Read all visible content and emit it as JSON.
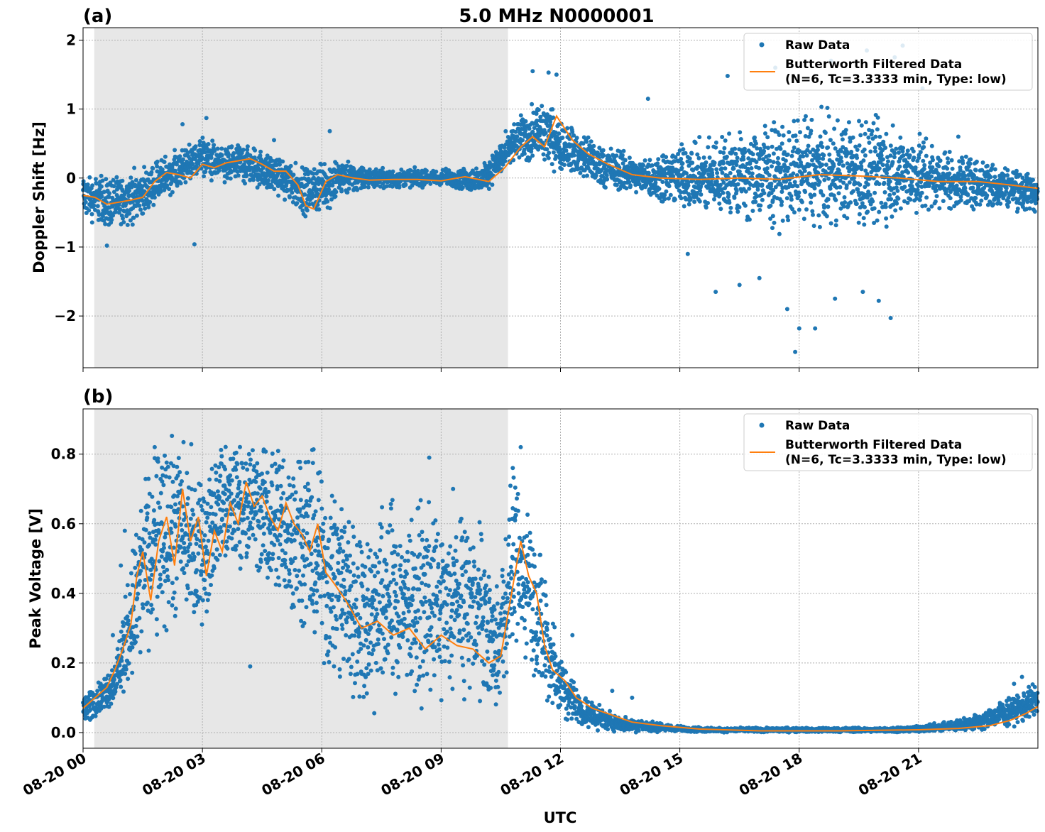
{
  "figure": {
    "title": "5.0 MHz N0000001",
    "xlabel": "UTC",
    "x_tick_labels": [
      "08-20 00",
      "08-20 03",
      "08-20 06",
      "08-20 09",
      "08-20 12",
      "08-20 15",
      "08-20 18",
      "08-20 21"
    ]
  },
  "colors": {
    "raw": "#1f77b4",
    "filtered": "#ff7f0e",
    "night_shade": "#e7e7e7",
    "grid": "#b0b0b0"
  },
  "chart_data": [
    {
      "type": "scatter",
      "panel_label": "(a)",
      "ylabel": "Doppler Shift [Hz]",
      "x_unit": "hours UTC on 08-20",
      "xlim": [
        0,
        24
      ],
      "ylim": [
        -2.75,
        2.18
      ],
      "y_ticks": [
        2,
        1,
        0,
        -1,
        -2
      ],
      "y_tick_labels": [
        "2",
        "1",
        "0",
        "−1",
        "−2"
      ],
      "grid": true,
      "legend_placement": "top-right",
      "shaded_region": {
        "x_start": 0.28,
        "x_end": 10.68
      },
      "series": [
        {
          "name": "Raw Data",
          "style": "markers",
          "band": {
            "x": [
              0,
              0.5,
              1,
              1.5,
              2,
              2.5,
              3,
              3.5,
              4,
              4.5,
              5,
              5.5,
              6,
              6.5,
              7,
              8,
              9,
              10,
              10.5,
              11,
              11.5,
              12,
              12.5,
              13,
              14,
              15,
              16,
              17,
              18,
              19,
              20,
              21,
              22,
              23,
              24
            ],
            "lo": [
              -0.6,
              -0.8,
              -0.75,
              -0.65,
              -0.35,
              -0.2,
              0,
              -0.15,
              -0.1,
              -0.2,
              -0.35,
              -0.55,
              -0.6,
              -0.3,
              -0.2,
              -0.15,
              -0.15,
              -0.25,
              -0.05,
              0.2,
              0.1,
              0.05,
              -0.05,
              -0.2,
              -0.3,
              -0.5,
              -0.7,
              -0.8,
              -0.8,
              -0.8,
              -0.8,
              -0.6,
              -0.5,
              -0.5,
              -0.55
            ],
            "hi": [
              0.15,
              0.1,
              0.1,
              0.2,
              0.35,
              0.5,
              0.65,
              0.5,
              0.55,
              0.45,
              0.35,
              0.25,
              0.3,
              0.35,
              0.2,
              0.15,
              0.15,
              0.2,
              0.6,
              0.95,
              1.25,
              0.9,
              0.75,
              0.55,
              0.35,
              0.55,
              0.75,
              0.9,
              1.0,
              1.0,
              0.95,
              0.7,
              0.4,
              0.3,
              0.1
            ]
          },
          "outliers": [
            [
              2.5,
              0.78
            ],
            [
              3.1,
              0.87
            ],
            [
              4.8,
              0.55
            ],
            [
              6.2,
              0.68
            ],
            [
              2.8,
              -0.96
            ],
            [
              0.6,
              -0.98
            ],
            [
              11.3,
              1.55
            ],
            [
              11.7,
              1.53
            ],
            [
              11.9,
              1.5
            ],
            [
              14.2,
              1.15
            ],
            [
              15.2,
              -1.1
            ],
            [
              15.9,
              -1.65
            ],
            [
              16.5,
              -1.55
            ],
            [
              17.0,
              -1.45
            ],
            [
              17.7,
              -1.9
            ],
            [
              17.9,
              -2.52
            ],
            [
              18.0,
              -2.18
            ],
            [
              18.4,
              -2.18
            ],
            [
              18.9,
              -1.75
            ],
            [
              19.6,
              -1.65
            ],
            [
              20.3,
              -2.03
            ],
            [
              20.0,
              -1.78
            ],
            [
              16.2,
              1.48
            ],
            [
              17.4,
              1.6
            ],
            [
              18.8,
              1.7
            ],
            [
              19.7,
              1.85
            ],
            [
              20.4,
              1.75
            ],
            [
              20.6,
              1.92
            ],
            [
              21.1,
              1.3
            ],
            [
              22.0,
              0.6
            ]
          ]
        },
        {
          "name": "Butterworth Filtered Data\n(N=6, Tc=3.3333 min, Type: low)",
          "style": "line",
          "x": [
            0,
            0.3,
            0.6,
            0.9,
            1.2,
            1.5,
            1.8,
            2.1,
            2.4,
            2.7,
            3.0,
            3.3,
            3.6,
            3.9,
            4.2,
            4.5,
            4.8,
            5.1,
            5.4,
            5.6,
            5.8,
            6.1,
            6.4,
            6.8,
            7.2,
            7.8,
            8.4,
            9.0,
            9.6,
            10.2,
            10.6,
            11.0,
            11.3,
            11.6,
            11.9,
            12.3,
            12.7,
            13.2,
            13.8,
            14.5,
            15.5,
            16.5,
            17.5,
            18.5,
            19.5,
            20.5,
            21.5,
            22.5,
            23.3,
            24.0
          ],
          "y": [
            -0.25,
            -0.28,
            -0.38,
            -0.35,
            -0.32,
            -0.28,
            -0.05,
            0.08,
            0.05,
            0.0,
            0.2,
            0.15,
            0.22,
            0.25,
            0.28,
            0.2,
            0.1,
            0.1,
            -0.1,
            -0.4,
            -0.45,
            -0.05,
            0.05,
            0.0,
            -0.03,
            -0.02,
            -0.02,
            -0.04,
            0.02,
            -0.05,
            0.15,
            0.45,
            0.6,
            0.45,
            0.9,
            0.55,
            0.35,
            0.2,
            0.05,
            0.0,
            -0.02,
            0.0,
            -0.02,
            0.05,
            0.03,
            0.0,
            -0.05,
            -0.05,
            -0.1,
            -0.15
          ]
        }
      ]
    },
    {
      "type": "scatter",
      "panel_label": "(b)",
      "ylabel": "Peak Voltage [V]",
      "x_unit": "hours UTC on 08-20",
      "xlim": [
        0,
        24
      ],
      "ylim": [
        -0.045,
        0.93
      ],
      "y_ticks": [
        0.8,
        0.6,
        0.4,
        0.2,
        0.0
      ],
      "y_tick_labels": [
        "0.8",
        "0.6",
        "0.4",
        "0.2",
        "0.0"
      ],
      "grid": true,
      "legend_placement": "top-right",
      "shaded_region": {
        "x_start": 0.28,
        "x_end": 10.68
      },
      "series": [
        {
          "name": "Raw Data",
          "style": "markers",
          "band": {
            "x": [
              0,
              0.3,
              0.6,
              0.9,
              1.2,
              1.5,
              1.8,
              2.1,
              2.5,
              3.0,
              3.5,
              4.0,
              4.5,
              5.0,
              5.5,
              5.8,
              6.2,
              6.6,
              7.0,
              7.5,
              8.0,
              8.5,
              9.0,
              9.5,
              10.0,
              10.4,
              10.8,
              11.2,
              11.6,
              12.0,
              12.5,
              13.0,
              13.5,
              14.0,
              15.0,
              16.0,
              18.0,
              20.0,
              21.0,
              22.0,
              22.5,
              23.0,
              23.5,
              24.0
            ],
            "lo": [
              0.02,
              0.04,
              0.05,
              0.08,
              0.1,
              0.15,
              0.2,
              0.25,
              0.3,
              0.25,
              0.45,
              0.45,
              0.4,
              0.3,
              0.25,
              0.2,
              0.1,
              0.05,
              0.05,
              0.05,
              0.07,
              0.05,
              0.08,
              0.06,
              0.06,
              0.03,
              0.2,
              0.15,
              0.05,
              0.02,
              0.01,
              0.0,
              0.0,
              0.0,
              0.0,
              0.0,
              0.0,
              0.0,
              0.0,
              0.0,
              0.0,
              0.01,
              0.02,
              0.03
            ],
            "hi": [
              0.12,
              0.14,
              0.18,
              0.28,
              0.55,
              0.78,
              0.86,
              0.88,
              0.88,
              0.8,
              0.86,
              0.87,
              0.88,
              0.87,
              0.87,
              0.85,
              0.78,
              0.72,
              0.62,
              0.72,
              0.7,
              0.7,
              0.65,
              0.68,
              0.65,
              0.4,
              0.78,
              0.72,
              0.5,
              0.25,
              0.12,
              0.08,
              0.05,
              0.04,
              0.02,
              0.015,
              0.015,
              0.015,
              0.02,
              0.04,
              0.06,
              0.09,
              0.12,
              0.16
            ]
          },
          "outliers": [
            [
              0.75,
              0.28
            ],
            [
              0.95,
              0.48
            ],
            [
              1.05,
              0.58
            ],
            [
              1.8,
              0.82
            ],
            [
              11.0,
              0.82
            ],
            [
              12.3,
              0.28
            ],
            [
              13.3,
              0.12
            ],
            [
              13.8,
              0.1
            ],
            [
              10.4,
              0.42
            ],
            [
              10.8,
              0.76
            ],
            [
              23.4,
              0.14
            ],
            [
              23.6,
              0.16
            ],
            [
              4.2,
              0.19
            ],
            [
              6.5,
              0.58
            ],
            [
              8.7,
              0.79
            ],
            [
              9.3,
              0.7
            ]
          ]
        },
        {
          "name": "Butterworth Filtered Data\n(N=6, Tc=3.3333 min, Type: low)",
          "style": "line",
          "x": [
            0,
            0.2,
            0.4,
            0.6,
            0.8,
            1.0,
            1.2,
            1.35,
            1.5,
            1.7,
            1.9,
            2.1,
            2.3,
            2.5,
            2.7,
            2.9,
            3.1,
            3.3,
            3.5,
            3.7,
            3.9,
            4.1,
            4.3,
            4.5,
            4.7,
            4.9,
            5.1,
            5.3,
            5.5,
            5.7,
            5.9,
            6.1,
            6.3,
            6.6,
            7.0,
            7.4,
            7.8,
            8.2,
            8.6,
            9.0,
            9.4,
            9.8,
            10.2,
            10.5,
            10.8,
            11.0,
            11.2,
            11.4,
            11.6,
            11.8,
            12.1,
            12.4,
            12.8,
            13.3,
            13.8,
            14.5,
            15.5,
            17.0,
            19.0,
            21.0,
            22.0,
            22.8,
            23.3,
            23.7,
            24.0
          ],
          "y": [
            0.07,
            0.09,
            0.11,
            0.13,
            0.18,
            0.24,
            0.31,
            0.45,
            0.52,
            0.38,
            0.55,
            0.62,
            0.48,
            0.7,
            0.55,
            0.62,
            0.45,
            0.58,
            0.52,
            0.66,
            0.6,
            0.72,
            0.65,
            0.68,
            0.62,
            0.58,
            0.66,
            0.6,
            0.57,
            0.52,
            0.6,
            0.46,
            0.43,
            0.38,
            0.3,
            0.32,
            0.28,
            0.3,
            0.24,
            0.28,
            0.25,
            0.24,
            0.2,
            0.22,
            0.42,
            0.55,
            0.45,
            0.4,
            0.25,
            0.18,
            0.15,
            0.1,
            0.07,
            0.05,
            0.03,
            0.02,
            0.01,
            0.005,
            0.005,
            0.008,
            0.012,
            0.02,
            0.035,
            0.055,
            0.075
          ]
        }
      ]
    }
  ]
}
